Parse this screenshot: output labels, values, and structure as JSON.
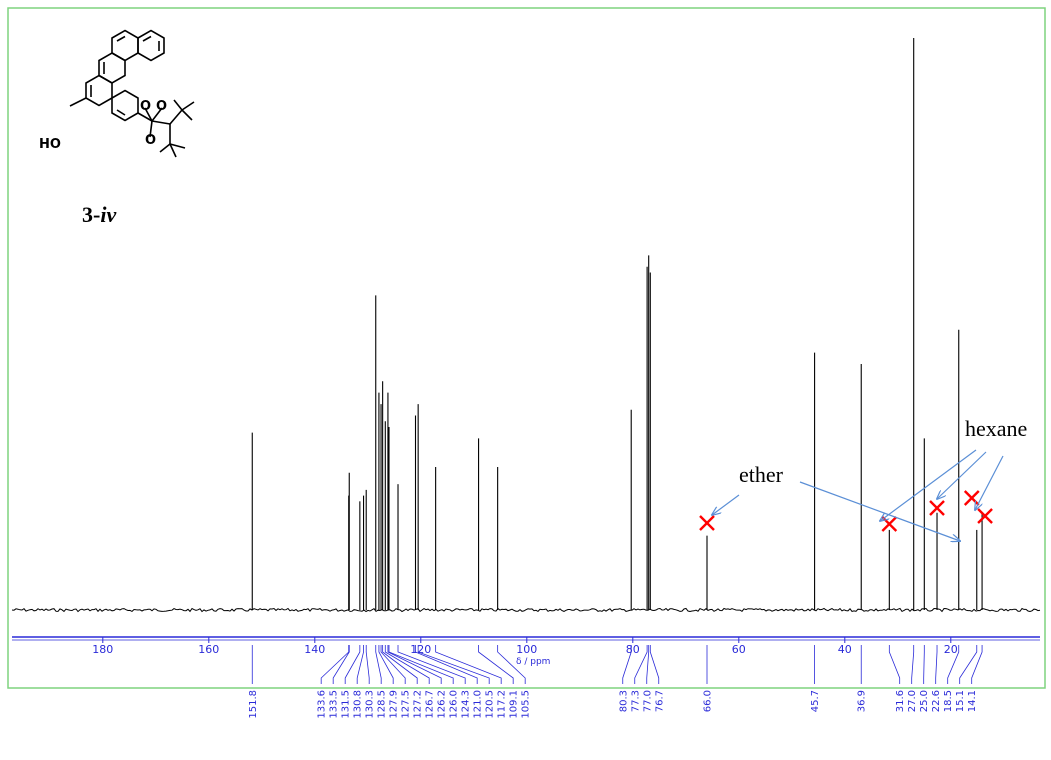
{
  "compound": {
    "label_main": "3-",
    "label_italic": "iv",
    "atoms": {
      "ho": "HO",
      "o_top_left": "O",
      "o_top_right": "O",
      "o_ring": "O"
    }
  },
  "annotations": {
    "ether": "ether",
    "hexane": "hexane"
  },
  "colors": {
    "frame": "#7ed37e",
    "spectrum": "#000000",
    "axis": "#2a2ad8",
    "arrow": "#5b8fd6",
    "impurity_mark": "#ff0000"
  },
  "chart_data": {
    "type": "nmr_spectrum",
    "xlabel": "δ / ppm",
    "xlim": [
      199,
      1
    ],
    "x_reversed": true,
    "ticks": [
      180,
      160,
      140,
      120,
      100,
      80,
      60,
      40,
      20
    ],
    "tick_labels": [
      "180",
      "160",
      "140",
      "120",
      "100",
      "80",
      "60",
      "40",
      "20"
    ],
    "peaks": [
      {
        "ppm": 151.8,
        "label": "151.8",
        "height": 0.31
      },
      {
        "ppm": 133.6,
        "label": "133.6",
        "height": 0.2
      },
      {
        "ppm": 133.5,
        "label": "133.5",
        "height": 0.24
      },
      {
        "ppm": 131.5,
        "label": "131.5",
        "height": 0.19
      },
      {
        "ppm": 130.8,
        "label": "130.8",
        "height": 0.2
      },
      {
        "ppm": 130.3,
        "label": "130.3",
        "height": 0.21
      },
      {
        "ppm": 128.5,
        "label": "128.5",
        "height": 0.55
      },
      {
        "ppm": 127.9,
        "label": "127.9",
        "height": 0.38
      },
      {
        "ppm": 127.5,
        "label": "127.5",
        "height": 0.36
      },
      {
        "ppm": 127.2,
        "label": "127.2",
        "height": 0.4
      },
      {
        "ppm": 126.7,
        "label": "126.7",
        "height": 0.33
      },
      {
        "ppm": 126.2,
        "label": "126.2",
        "height": 0.38
      },
      {
        "ppm": 126.0,
        "label": "126.0",
        "height": 0.32
      },
      {
        "ppm": 124.3,
        "label": "124.3",
        "height": 0.22
      },
      {
        "ppm": 121.0,
        "label": "121.0",
        "height": 0.34
      },
      {
        "ppm": 120.5,
        "label": "120.5",
        "height": 0.36
      },
      {
        "ppm": 117.2,
        "label": "117.2",
        "height": 0.25
      },
      {
        "ppm": 109.1,
        "label": "109.1",
        "height": 0.3
      },
      {
        "ppm": 105.5,
        "label": "105.5",
        "height": 0.25
      },
      {
        "ppm": 80.3,
        "label": "80.3",
        "height": 0.35
      },
      {
        "ppm": 77.3,
        "label": "77.3",
        "height": 0.6
      },
      {
        "ppm": 77.0,
        "label": "77.0",
        "height": 0.62
      },
      {
        "ppm": 76.7,
        "label": "76.7",
        "height": 0.59
      },
      {
        "ppm": 66.0,
        "label": "66.0",
        "height": 0.13
      },
      {
        "ppm": 45.7,
        "label": "45.7",
        "height": 0.45
      },
      {
        "ppm": 36.9,
        "label": "36.9",
        "height": 0.43
      },
      {
        "ppm": 31.6,
        "label": "31.6",
        "height": 0.14
      },
      {
        "ppm": 27.0,
        "label": "27.0",
        "height": 1.0
      },
      {
        "ppm": 25.0,
        "label": "25.0",
        "height": 0.3
      },
      {
        "ppm": 22.6,
        "label": "22.6",
        "height": 0.17
      },
      {
        "ppm": 18.5,
        "label": "18.5",
        "height": 0.49
      },
      {
        "ppm": 15.1,
        "label": "15.1",
        "height": 0.14
      },
      {
        "ppm": 14.1,
        "label": "14.1",
        "height": 0.17
      }
    ],
    "impurity_marks": [
      {
        "ppm": 66.0,
        "group": "ether"
      },
      {
        "ppm": 31.6,
        "group": "hexane"
      },
      {
        "ppm": 22.6,
        "group": "hexane"
      },
      {
        "ppm": 15.1,
        "group": "ether"
      },
      {
        "ppm": 14.1,
        "group": "hexane"
      }
    ]
  }
}
